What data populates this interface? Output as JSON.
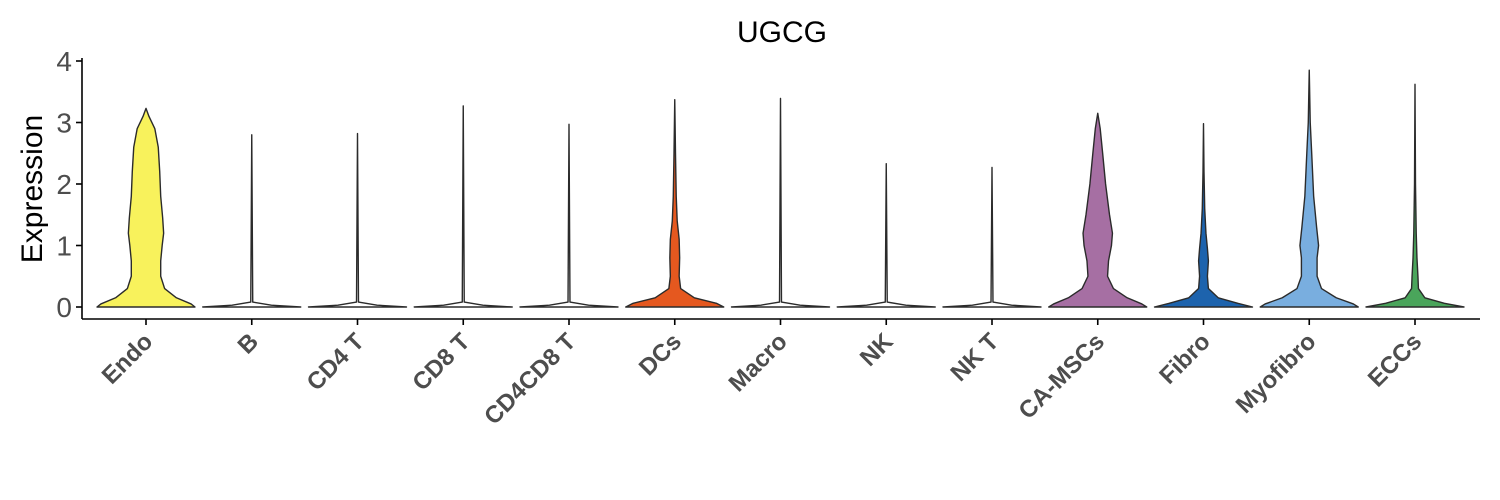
{
  "chart_data": {
    "type": "violin",
    "title": "UGCG",
    "xlabel": "",
    "ylabel": "Expression",
    "ylim": [
      -0.2,
      4.0
    ],
    "yticks": [
      0,
      1,
      2,
      3,
      4
    ],
    "grid": false,
    "legend": "none",
    "categories": [
      "Endo",
      "B",
      "CD4 T",
      "CD8 T",
      "CD4CD8 T",
      "DCs",
      "Macro",
      "NK",
      "NK T",
      "CA-MSCs",
      "Fibro",
      "Myofibro",
      "ECCs"
    ],
    "colors": [
      "#f8f25c",
      "#ffffff",
      "#ffffff",
      "#ffffff",
      "#ffffff",
      "#e5581f",
      "#ffffff",
      "#ffffff",
      "#ffffff",
      "#a66fa3",
      "#1d63ad",
      "#79aedf",
      "#4aa55b"
    ],
    "max_values": [
      3.23,
      2.8,
      2.82,
      3.27,
      2.97,
      3.37,
      3.39,
      2.33,
      2.27,
      3.15,
      2.98,
      3.85,
      3.62
    ],
    "density_profiles": [
      [
        [
          0,
          1.0
        ],
        [
          0.05,
          0.92
        ],
        [
          0.15,
          0.62
        ],
        [
          0.3,
          0.38
        ],
        [
          0.5,
          0.3
        ],
        [
          0.75,
          0.3
        ],
        [
          1.0,
          0.33
        ],
        [
          1.2,
          0.36
        ],
        [
          1.45,
          0.34
        ],
        [
          1.8,
          0.3
        ],
        [
          2.2,
          0.28
        ],
        [
          2.6,
          0.25
        ],
        [
          2.9,
          0.18
        ],
        [
          3.1,
          0.06
        ],
        [
          3.23,
          0.0
        ]
      ],
      [
        [
          0,
          1.0
        ],
        [
          0.03,
          0.4
        ],
        [
          0.08,
          0.02
        ],
        [
          2.8,
          0.0
        ]
      ],
      [
        [
          0,
          1.0
        ],
        [
          0.03,
          0.4
        ],
        [
          0.08,
          0.02
        ],
        [
          2.82,
          0.0
        ]
      ],
      [
        [
          0,
          1.0
        ],
        [
          0.03,
          0.4
        ],
        [
          0.08,
          0.02
        ],
        [
          3.27,
          0.0
        ]
      ],
      [
        [
          0,
          1.0
        ],
        [
          0.03,
          0.4
        ],
        [
          0.08,
          0.02
        ],
        [
          2.97,
          0.0
        ]
      ],
      [
        [
          0,
          1.0
        ],
        [
          0.06,
          0.85
        ],
        [
          0.15,
          0.4
        ],
        [
          0.3,
          0.12
        ],
        [
          0.5,
          0.09
        ],
        [
          0.8,
          0.1
        ],
        [
          1.1,
          0.09
        ],
        [
          1.4,
          0.05
        ],
        [
          1.8,
          0.03
        ],
        [
          2.5,
          0.015
        ],
        [
          3.37,
          0.0
        ]
      ],
      [
        [
          0,
          1.0
        ],
        [
          0.03,
          0.4
        ],
        [
          0.08,
          0.02
        ],
        [
          3.39,
          0.0
        ]
      ],
      [
        [
          0,
          1.0
        ],
        [
          0.03,
          0.4
        ],
        [
          0.08,
          0.02
        ],
        [
          2.33,
          0.0
        ]
      ],
      [
        [
          0,
          1.0
        ],
        [
          0.03,
          0.4
        ],
        [
          0.08,
          0.02
        ],
        [
          2.27,
          0.0
        ]
      ],
      [
        [
          0,
          1.0
        ],
        [
          0.05,
          0.9
        ],
        [
          0.15,
          0.6
        ],
        [
          0.3,
          0.32
        ],
        [
          0.5,
          0.2
        ],
        [
          0.75,
          0.22
        ],
        [
          1.0,
          0.28
        ],
        [
          1.2,
          0.3
        ],
        [
          1.5,
          0.24
        ],
        [
          2.0,
          0.16
        ],
        [
          2.5,
          0.1
        ],
        [
          2.9,
          0.05
        ],
        [
          3.15,
          0.0
        ]
      ],
      [
        [
          0,
          1.0
        ],
        [
          0.06,
          0.7
        ],
        [
          0.15,
          0.3
        ],
        [
          0.3,
          0.1
        ],
        [
          0.5,
          0.08
        ],
        [
          0.75,
          0.1
        ],
        [
          0.95,
          0.08
        ],
        [
          1.2,
          0.05
        ],
        [
          1.6,
          0.025
        ],
        [
          2.2,
          0.01
        ],
        [
          2.98,
          0.0
        ]
      ],
      [
        [
          0,
          1.0
        ],
        [
          0.05,
          0.9
        ],
        [
          0.15,
          0.55
        ],
        [
          0.3,
          0.25
        ],
        [
          0.5,
          0.16
        ],
        [
          0.8,
          0.16
        ],
        [
          1.0,
          0.19
        ],
        [
          1.3,
          0.15
        ],
        [
          1.8,
          0.09
        ],
        [
          2.5,
          0.05
        ],
        [
          3.0,
          0.02
        ],
        [
          3.85,
          0.0
        ]
      ],
      [
        [
          0,
          1.0
        ],
        [
          0.06,
          0.6
        ],
        [
          0.15,
          0.2
        ],
        [
          0.3,
          0.07
        ],
        [
          0.5,
          0.06
        ],
        [
          0.8,
          0.04
        ],
        [
          1.2,
          0.025
        ],
        [
          2.0,
          0.01
        ],
        [
          3.62,
          0.0
        ]
      ]
    ]
  }
}
